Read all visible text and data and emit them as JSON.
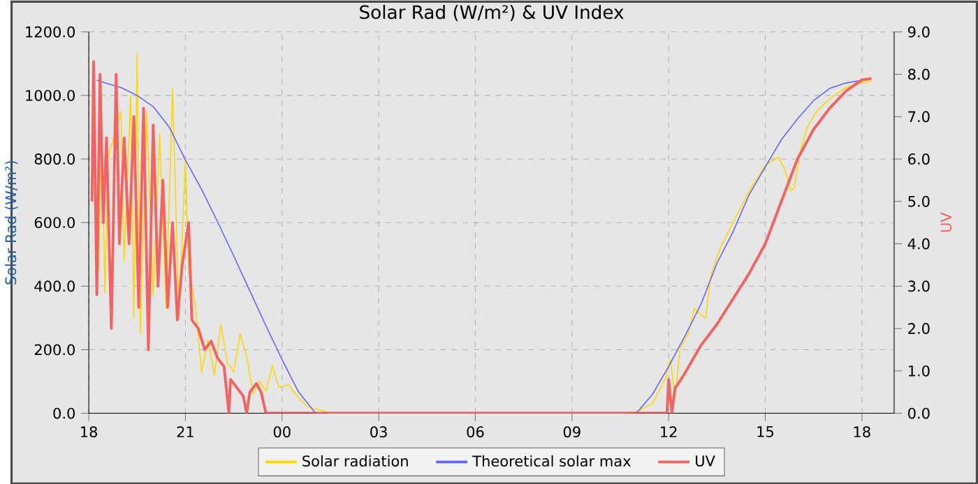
{
  "chart_data": {
    "type": "line",
    "title": "Solar Rad (W/m²) &  UV Index",
    "ylabel": "Solar Rad (W/m²)",
    "y2label": "UV",
    "xlim": [
      18,
      43
    ],
    "xticks": [
      {
        "value": 18,
        "label": "18"
      },
      {
        "value": 21,
        "label": "21"
      },
      {
        "value": 24,
        "label": "00"
      },
      {
        "value": 27,
        "label": "03"
      },
      {
        "value": 30,
        "label": "06"
      },
      {
        "value": 33,
        "label": "09"
      },
      {
        "value": 36,
        "label": "12"
      },
      {
        "value": 39,
        "label": "15"
      },
      {
        "value": 42,
        "label": "18"
      }
    ],
    "ylim": [
      0,
      1200
    ],
    "yticks": [
      {
        "value": 0,
        "label": "0.0"
      },
      {
        "value": 200,
        "label": "200.0"
      },
      {
        "value": 400,
        "label": "400.0"
      },
      {
        "value": 600,
        "label": "600.0"
      },
      {
        "value": 800,
        "label": "800.0"
      },
      {
        "value": 1000,
        "label": "1000.0"
      },
      {
        "value": 1200,
        "label": "1200.0"
      }
    ],
    "y2lim": [
      0,
      9
    ],
    "y2ticks": [
      {
        "value": 0,
        "label": "0.0"
      },
      {
        "value": 1,
        "label": "1.0"
      },
      {
        "value": 2,
        "label": "2.0"
      },
      {
        "value": 3,
        "label": "3.0"
      },
      {
        "value": 4,
        "label": "4.0"
      },
      {
        "value": 5,
        "label": "5.0"
      },
      {
        "value": 6,
        "label": "6.0"
      },
      {
        "value": 7,
        "label": "7.0"
      },
      {
        "value": 8,
        "label": "8.0"
      },
      {
        "value": 9,
        "label": "9.0"
      }
    ],
    "grid": true,
    "legend": "bottom",
    "series": [
      {
        "name": "Solar radiation",
        "color": "#ffd700",
        "x": [
          18.2,
          18.3,
          18.4,
          18.5,
          18.6,
          18.8,
          19.0,
          19.1,
          19.3,
          19.4,
          19.5,
          19.6,
          19.8,
          20.0,
          20.2,
          20.4,
          20.6,
          20.8,
          21.0,
          21.1,
          21.3,
          21.5,
          21.7,
          21.9,
          22.1,
          22.3,
          22.5,
          22.7,
          22.9,
          23.1,
          23.3,
          23.5,
          23.7,
          23.9,
          24.2,
          24.5,
          24.8,
          25.2,
          25.5,
          34.5,
          35.0,
          35.5,
          35.9,
          36.05,
          36.2,
          36.35,
          36.6,
          36.8,
          37.0,
          37.15,
          37.3,
          37.6,
          38.0,
          38.5,
          39.0,
          39.4,
          39.6,
          39.8,
          39.9,
          40.1,
          40.3,
          40.6,
          41.0,
          41.5,
          42.0,
          42.3
        ],
        "values": [
          700,
          450,
          900,
          380,
          800,
          880,
          950,
          480,
          1000,
          300,
          1130,
          250,
          950,
          370,
          880,
          330,
          1020,
          300,
          800,
          450,
          350,
          130,
          230,
          120,
          280,
          160,
          130,
          250,
          180,
          60,
          100,
          70,
          150,
          80,
          90,
          50,
          20,
          10,
          0,
          0,
          5,
          30,
          110,
          170,
          50,
          200,
          250,
          330,
          310,
          300,
          430,
          520,
          600,
          700,
          780,
          805,
          770,
          700,
          710,
          830,
          900,
          950,
          990,
          1025,
          1040,
          1045
        ]
      },
      {
        "name": "Theoretical solar max",
        "color": "#6464ff",
        "x": [
          18.25,
          18.5,
          19.0,
          19.5,
          20.0,
          20.5,
          21.0,
          21.5,
          22.0,
          22.5,
          23.0,
          23.5,
          24.0,
          24.5,
          25.0,
          25.1,
          34.9,
          35.04,
          35.5,
          36.0,
          36.5,
          37.0,
          37.5,
          38.0,
          38.5,
          39.0,
          39.5,
          40.0,
          40.5,
          41.0,
          41.5,
          42.0
        ],
        "values": [
          1048,
          1040,
          1025,
          1000,
          965,
          900,
          797,
          705,
          602,
          495,
          385,
          275,
          169,
          69,
          5,
          0,
          0,
          5,
          60,
          147,
          242,
          342,
          472,
          571,
          688,
          775,
          861,
          926,
          984,
          1022,
          1039,
          1048
        ]
      },
      {
        "name": "UV",
        "color": "#f06464",
        "axis": "y2",
        "x": [
          18.1,
          18.15,
          18.25,
          18.35,
          18.45,
          18.55,
          18.7,
          18.85,
          18.95,
          19.1,
          19.25,
          19.4,
          19.55,
          19.7,
          19.85,
          20.0,
          20.15,
          20.3,
          20.45,
          20.6,
          20.75,
          20.9,
          21.1,
          21.2,
          21.4,
          21.6,
          21.8,
          22.0,
          22.2,
          22.35,
          22.4,
          22.6,
          22.8,
          22.9,
          23.0,
          23.2,
          23.35,
          23.5,
          35.95,
          36.0,
          36.1,
          36.2,
          36.3,
          36.5,
          37.0,
          37.5,
          38.0,
          38.5,
          39.0,
          39.5,
          40.0,
          40.5,
          41.0,
          41.5,
          42.0,
          42.3
        ],
        "values": [
          5.0,
          8.3,
          2.8,
          8.0,
          4.5,
          6.5,
          2.0,
          8.0,
          4.0,
          6.5,
          4.0,
          7.0,
          2.5,
          7.2,
          1.5,
          6.8,
          3.0,
          5.5,
          2.5,
          4.5,
          2.2,
          3.5,
          4.5,
          2.2,
          2.0,
          1.5,
          1.7,
          1.3,
          1.1,
          0.0,
          0.8,
          0.6,
          0.4,
          0.0,
          0.5,
          0.7,
          0.5,
          0.0,
          0.0,
          0.8,
          0.0,
          0.6,
          0.7,
          0.94,
          1.6,
          2.1,
          2.7,
          3.3,
          4.0,
          5.0,
          6.0,
          6.7,
          7.2,
          7.6,
          7.87,
          7.9
        ]
      }
    ]
  }
}
